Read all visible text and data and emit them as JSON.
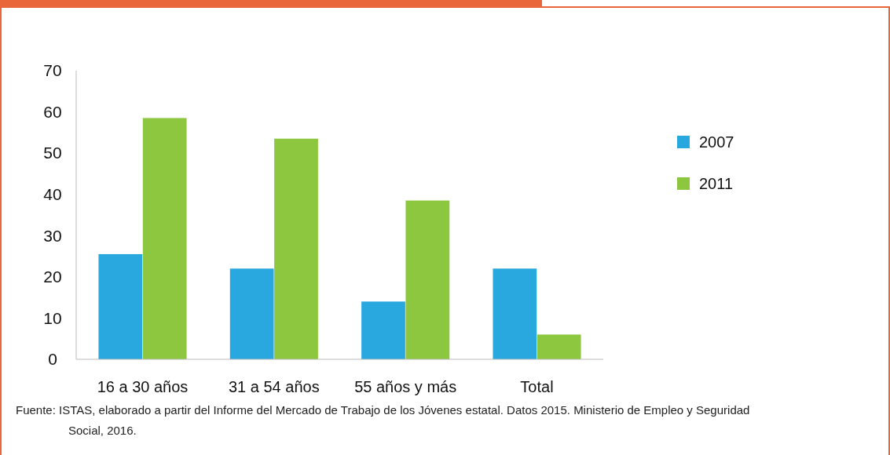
{
  "chart_data": {
    "type": "bar",
    "categories": [
      "16 a 30 años",
      "31 a 54 años",
      "55 años y más",
      "Total"
    ],
    "series": [
      {
        "name": "2007",
        "color": "#29a8e0",
        "values": [
          25.5,
          22,
          14,
          22
        ]
      },
      {
        "name": "2011",
        "color": "#8dc63f",
        "values": [
          58.5,
          53.5,
          38.5,
          6
        ]
      }
    ],
    "ylim": [
      0,
      70
    ],
    "yticks": [
      0,
      10,
      20,
      30,
      40,
      50,
      60,
      70
    ],
    "grid": false,
    "legend": "right",
    "annotations": [
      "Fuente: ISTAS, elaborado a partir del Informe del Mercado de Trabajo de los Jóvenes estatal. Datos 2015. Ministerio de Empleo y Seguridad Social, 2016."
    ]
  }
}
